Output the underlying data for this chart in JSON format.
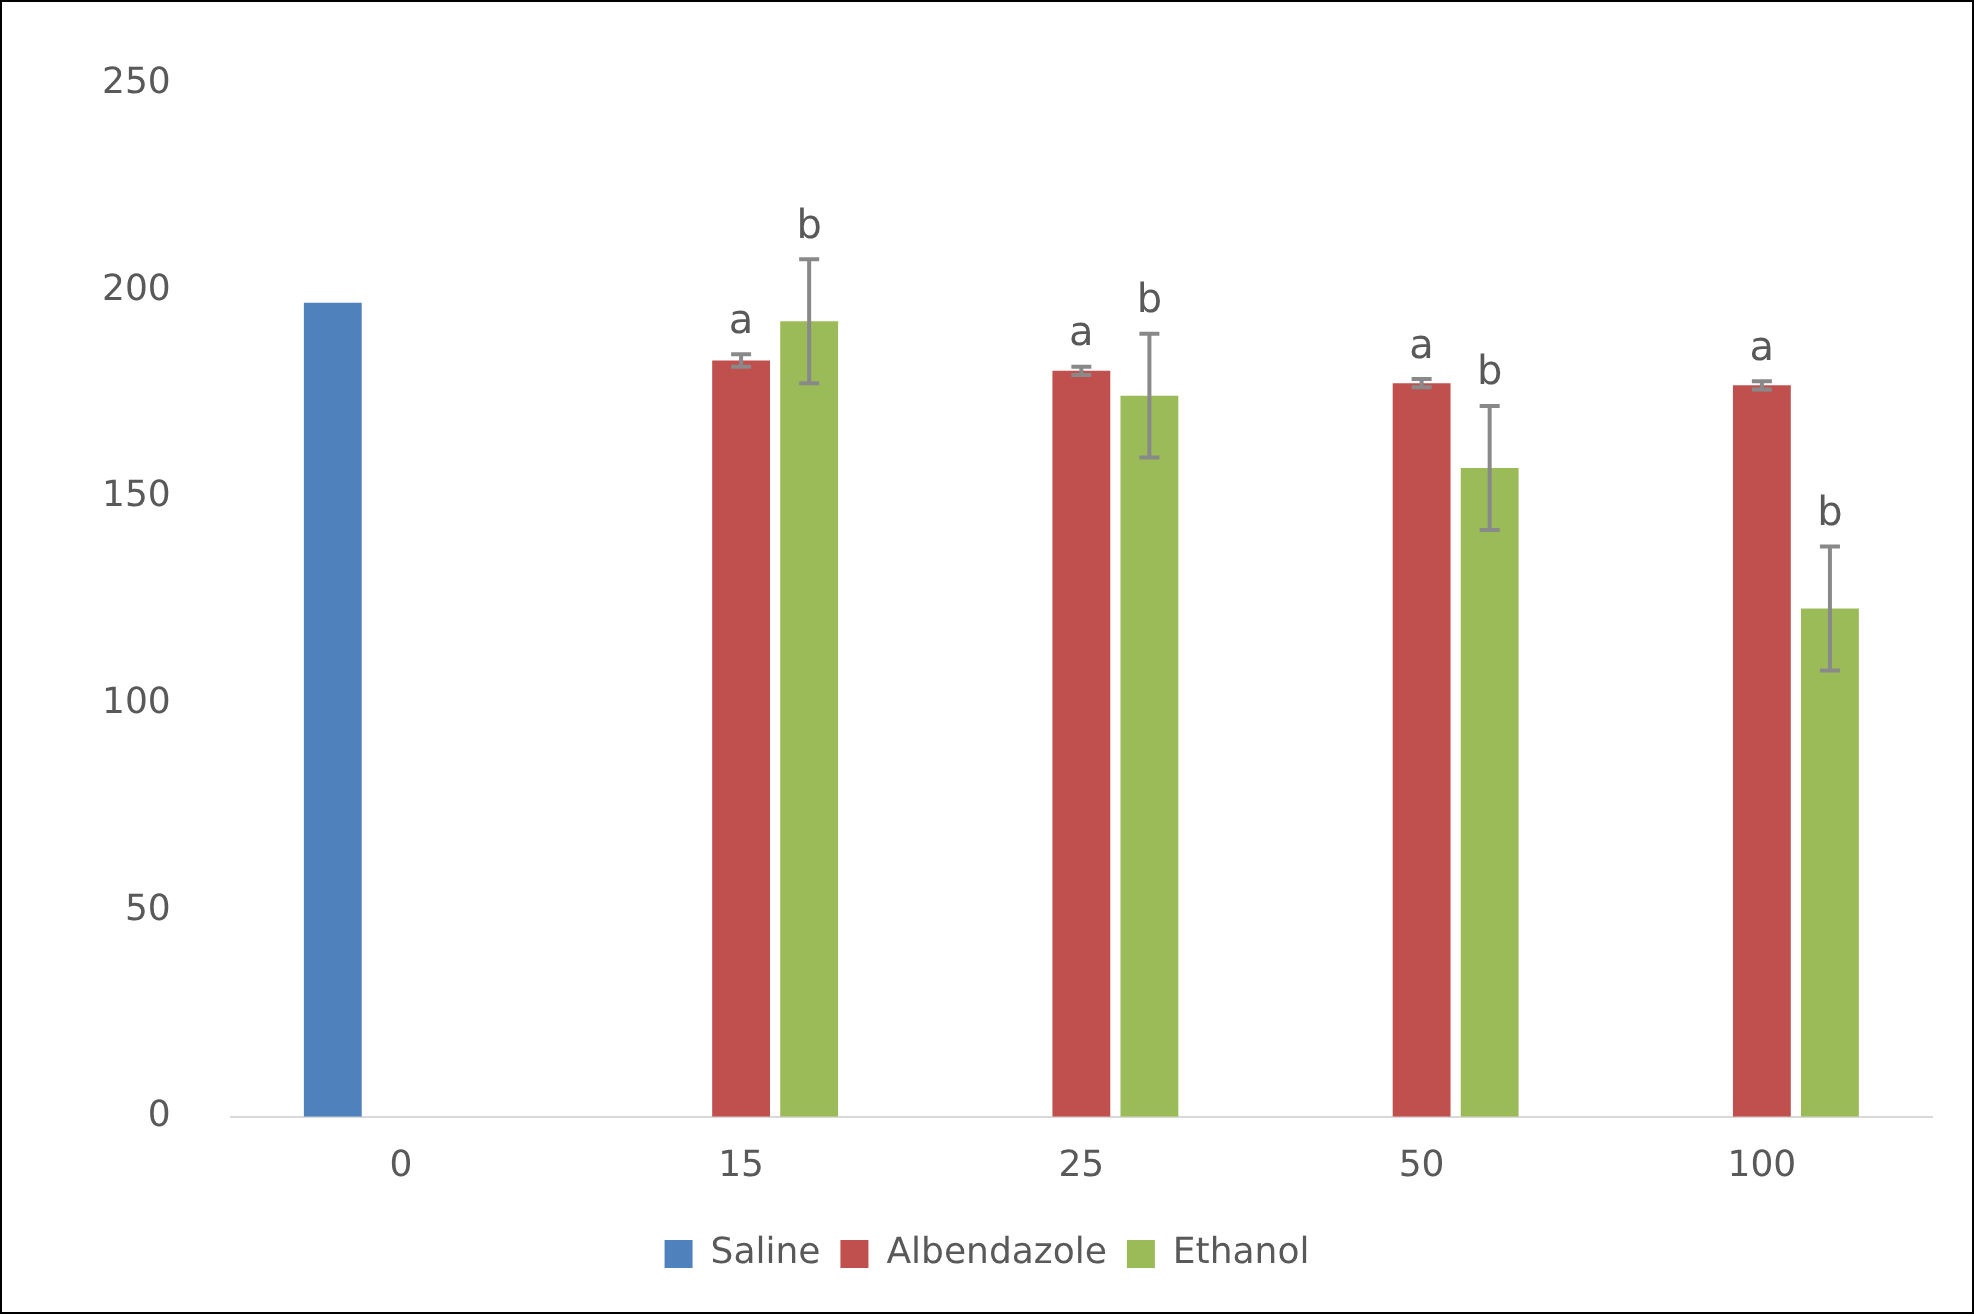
{
  "chart_data": {
    "type": "bar",
    "categories": [
      "0",
      "15",
      "25",
      "50",
      "100"
    ],
    "series": [
      {
        "name": "Saline",
        "color": "#4f81bd",
        "values": [
          197,
          null,
          null,
          null,
          null
        ]
      },
      {
        "name": "Albendazole",
        "color": "#c0504d",
        "values": [
          null,
          183,
          180.5,
          177.5,
          177
        ],
        "errors": [
          null,
          1.5,
          1,
          1,
          1
        ]
      },
      {
        "name": "Ethanol",
        "color": "#9bbb59",
        "values": [
          null,
          192.5,
          174.5,
          157,
          123
        ],
        "errors": [
          null,
          15,
          15,
          15,
          15
        ]
      }
    ],
    "ylim": [
      0,
      250
    ],
    "yticks": [
      0,
      50,
      100,
      150,
      200,
      250
    ],
    "grid": false,
    "legend": "bottom",
    "annotations": [
      "a",
      "b",
      "a",
      "b",
      "a",
      "b",
      "a",
      "b"
    ]
  }
}
